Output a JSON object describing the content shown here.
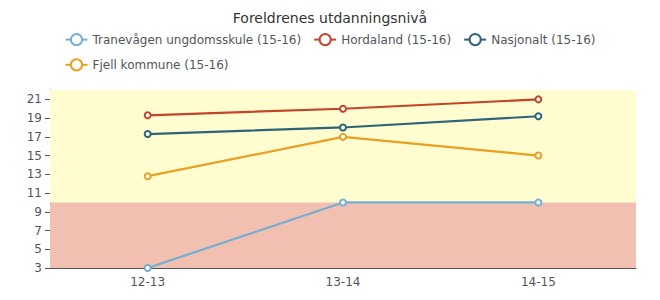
{
  "chart_data": {
    "type": "line",
    "title": "Foreldrenes utdanningsnivå",
    "categories": [
      "12-13",
      "13-14",
      "14-15"
    ],
    "series": [
      {
        "name": "Tranevågen ungdomsskule (15-16)",
        "color": "#74afd3",
        "values": [
          3.0,
          10.0,
          10.0
        ]
      },
      {
        "name": "Hordaland (15-16)",
        "color": "#c0452a",
        "values": [
          19.3,
          20.0,
          21.0
        ]
      },
      {
        "name": "Nasjonalt (15-16)",
        "color": "#2e6478",
        "values": [
          17.3,
          18.0,
          19.2
        ]
      },
      {
        "name": "Fjell kommune (15-16)",
        "color": "#e8a020",
        "values": [
          12.8,
          17.0,
          15.0
        ]
      }
    ],
    "bands": [
      {
        "from": 10.0,
        "to": 22,
        "color": "#fffcd0"
      },
      {
        "from": 3,
        "to": 10.0,
        "color": "#f2c0b0"
      }
    ],
    "ylim": [
      3,
      22
    ],
    "yticks": [
      3,
      5,
      7,
      9,
      11,
      13,
      15,
      17,
      19,
      21
    ],
    "grid": true,
    "legend": "top"
  }
}
